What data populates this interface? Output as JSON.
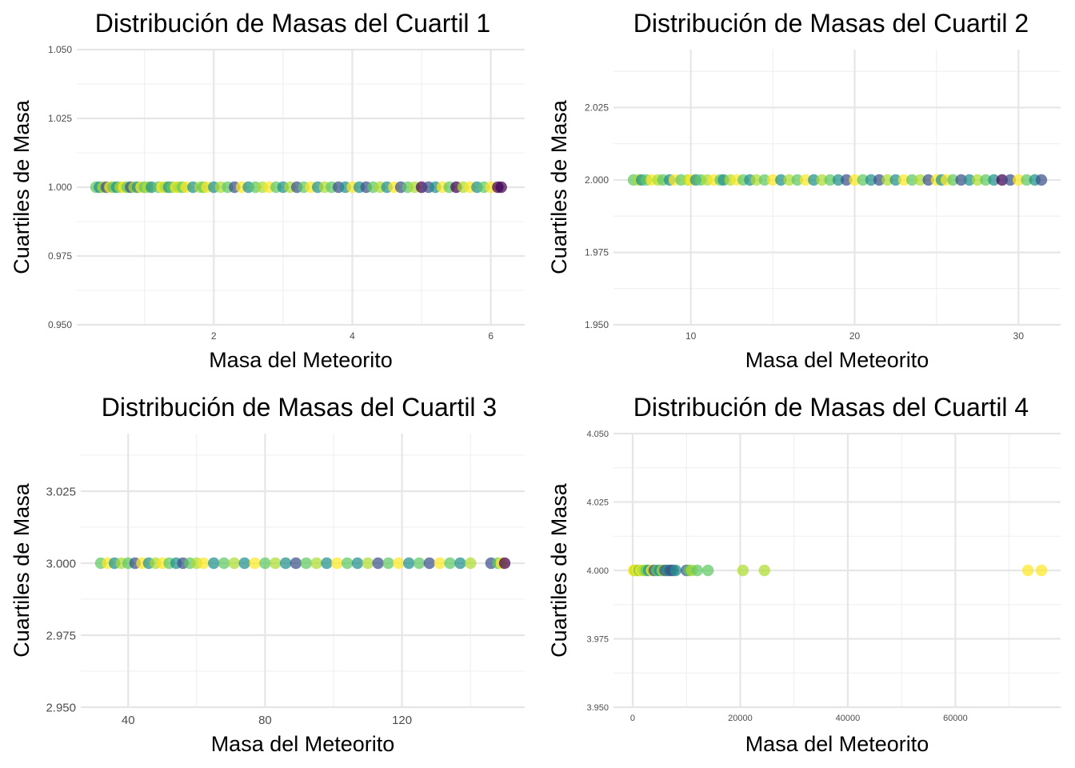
{
  "chart_data": [
    {
      "type": "scatter",
      "title": "Distribución de Masas del Cuartil 1",
      "xlabel": "Masa del Meteorito",
      "ylabel": "Cuartiles de Masa",
      "xlim": [
        0.3,
        6.2
      ],
      "ylim": [
        0.95,
        1.05
      ],
      "xticks": [
        "2",
        "4",
        "6"
      ],
      "xtick_values": [
        2,
        4,
        6
      ],
      "yticks": [
        "0.950",
        "0.975",
        "1.000",
        "1.025",
        "1.050"
      ],
      "ytick_values": [
        0.95,
        0.975,
        1.0,
        1.025,
        1.05
      ],
      "grid": true,
      "y_value": 1.0,
      "x": [
        0.3,
        0.35,
        0.4,
        0.45,
        0.5,
        0.55,
        0.6,
        0.65,
        0.7,
        0.75,
        0.8,
        0.85,
        0.9,
        0.95,
        1.0,
        1.05,
        1.1,
        1.2,
        1.25,
        1.3,
        1.35,
        1.4,
        1.45,
        1.5,
        1.55,
        1.6,
        1.7,
        1.8,
        1.85,
        1.9,
        2.0,
        2.1,
        2.2,
        2.3,
        2.4,
        2.5,
        2.6,
        2.7,
        2.8,
        2.9,
        3.0,
        3.1,
        3.2,
        3.3,
        3.4,
        3.5,
        3.6,
        3.7,
        3.8,
        3.9,
        4.0,
        4.1,
        4.2,
        4.3,
        4.4,
        4.5,
        4.6,
        4.7,
        4.8,
        4.9,
        5.0,
        5.1,
        5.2,
        5.3,
        5.4,
        5.5,
        5.6,
        5.7,
        5.8,
        5.9,
        6.0,
        6.1,
        6.15
      ],
      "colors": [
        "#5ec962",
        "#21918c",
        "#addc30",
        "#3b528b",
        "#fde725",
        "#5ec962",
        "#21918c",
        "#addc30",
        "#fde725",
        "#5ec962",
        "#3b528b",
        "#addc30",
        "#21918c",
        "#fde725",
        "#5ec962",
        "#addc30",
        "#21918c",
        "#5ec962",
        "#fde725",
        "#addc30",
        "#21918c",
        "#5ec962",
        "#fde725",
        "#addc30",
        "#5ec962",
        "#fde725",
        "#21918c",
        "#addc30",
        "#5ec962",
        "#fde725",
        "#21918c",
        "#addc30",
        "#5ec962",
        "#3b528b",
        "#fde725",
        "#21918c",
        "#5ec962",
        "#addc30",
        "#fde725",
        "#5ec962",
        "#21918c",
        "#addc30",
        "#3b528b",
        "#5ec962",
        "#fde725",
        "#21918c",
        "#addc30",
        "#5ec962",
        "#3b528b",
        "#21918c",
        "#fde725",
        "#21918c",
        "#3b528b",
        "#5ec962",
        "#addc30",
        "#21918c",
        "#fde725",
        "#3b528b",
        "#5ec962",
        "#addc30",
        "#440154",
        "#3b528b",
        "#21918c",
        "#fde725",
        "#5ec962",
        "#440154",
        "#addc30",
        "#fde725",
        "#21918c",
        "#5ec962",
        "#fde725",
        "#440154",
        "#440154"
      ]
    },
    {
      "type": "scatter",
      "title": "Distribución de Masas del Cuartil 2",
      "xlabel": "Masa del Meteorito",
      "ylabel": "Cuartiles de Masa",
      "xlim": [
        6.5,
        31.4
      ],
      "ylim": [
        1.95,
        2.045
      ],
      "xticks": [
        "10",
        "20",
        "30"
      ],
      "xtick_values": [
        10,
        20,
        30
      ],
      "yticks": [
        "1.950",
        "1.975",
        "2.000",
        "2.025"
      ],
      "ytick_values": [
        1.95,
        1.975,
        2.0,
        2.025
      ],
      "grid": true,
      "y_value": 2.0,
      "x": [
        6.5,
        6.8,
        7.0,
        7.3,
        7.6,
        8.0,
        8.3,
        8.7,
        9.0,
        9.4,
        9.8,
        10.0,
        10.3,
        10.6,
        11.0,
        11.4,
        11.8,
        12.0,
        12.4,
        12.8,
        13.2,
        13.6,
        14.0,
        14.5,
        15.0,
        15.5,
        16.0,
        16.5,
        17.0,
        17.5,
        18.0,
        18.5,
        19.0,
        19.5,
        20.0,
        20.5,
        21.0,
        21.5,
        22.0,
        22.5,
        23.0,
        23.5,
        24.0,
        24.5,
        25.0,
        25.3,
        25.6,
        26.0,
        26.5,
        27.0,
        27.5,
        28.0,
        28.5,
        29.0,
        29.5,
        30.0,
        30.5,
        31.0,
        31.4
      ],
      "colors": [
        "#5ec962",
        "#addc30",
        "#21918c",
        "#5ec962",
        "#fde725",
        "#addc30",
        "#5ec962",
        "#21918c",
        "#fde725",
        "#5ec962",
        "#addc30",
        "#fde725",
        "#21918c",
        "#5ec962",
        "#addc30",
        "#fde725",
        "#5ec962",
        "#21918c",
        "#addc30",
        "#fde725",
        "#5ec962",
        "#21918c",
        "#addc30",
        "#5ec962",
        "#fde725",
        "#21918c",
        "#addc30",
        "#5ec962",
        "#fde725",
        "#21918c",
        "#addc30",
        "#5ec962",
        "#21918c",
        "#3b528b",
        "#fde725",
        "#5ec962",
        "#21918c",
        "#3b528b",
        "#addc30",
        "#21918c",
        "#fde725",
        "#5ec962",
        "#addc30",
        "#3b528b",
        "#fde725",
        "#21918c",
        "#fde725",
        "#5ec962",
        "#3b528b",
        "#21918c",
        "#addc30",
        "#5ec962",
        "#21918c",
        "#440154",
        "#3b528b",
        "#fde725",
        "#5ec962",
        "#21918c",
        "#3b528b"
      ]
    },
    {
      "type": "scatter",
      "title": "Distribución de Masas del Cuartil 3",
      "xlabel": "Masa del Meteorito",
      "ylabel": "Cuartiles de Masa",
      "xlim": [
        32,
        150
      ],
      "ylim": [
        2.95,
        3.045
      ],
      "xticks": [
        "40",
        "80",
        "120"
      ],
      "xtick_values": [
        40,
        80,
        120
      ],
      "yticks": [
        "2.950",
        "2.975",
        "3.000",
        "3.025"
      ],
      "ytick_values": [
        2.95,
        2.975,
        3.0,
        3.025
      ],
      "grid": true,
      "y_value": 3.0,
      "x": [
        32,
        34,
        36,
        38,
        40,
        42,
        44,
        46,
        48,
        50,
        52,
        54,
        56,
        58,
        60,
        62,
        65,
        68,
        71,
        74,
        77,
        80,
        83,
        86,
        89,
        92,
        95,
        98,
        101,
        104,
        107,
        110,
        113,
        116,
        119,
        122,
        125,
        128,
        131,
        134,
        137,
        140,
        146,
        148,
        149,
        150
      ],
      "colors": [
        "#5ec962",
        "#fde725",
        "#21918c",
        "#addc30",
        "#5ec962",
        "#3b528b",
        "#fde725",
        "#21918c",
        "#addc30",
        "#fde725",
        "#5ec962",
        "#21918c",
        "#3b528b",
        "#5ec962",
        "#addc30",
        "#fde725",
        "#21918c",
        "#5ec962",
        "#addc30",
        "#21918c",
        "#fde725",
        "#5ec962",
        "#addc30",
        "#21918c",
        "#3b528b",
        "#5ec962",
        "#addc30",
        "#21918c",
        "#fde725",
        "#5ec962",
        "#21918c",
        "#addc30",
        "#3b528b",
        "#5ec962",
        "#fde725",
        "#21918c",
        "#5ec962",
        "#3b528b",
        "#fde725",
        "#5ec962",
        "#21918c",
        "#addc30",
        "#3b528b",
        "#5ec962",
        "#fde725",
        "#440154"
      ]
    },
    {
      "type": "scatter",
      "title": "Distribución de Masas del Cuartil 4",
      "xlabel": "Masa del Meteorito",
      "ylabel": "Cuartiles de Masa",
      "xlim": [
        150,
        76000
      ],
      "ylim": [
        3.95,
        4.05
      ],
      "xticks": [
        "0",
        "20000",
        "40000",
        "60000"
      ],
      "xtick_values": [
        0,
        20000,
        40000,
        60000
      ],
      "yticks": [
        "3.950",
        "3.975",
        "4.000",
        "4.025",
        "4.050"
      ],
      "ytick_values": [
        3.95,
        3.975,
        4.0,
        4.025,
        4.05
      ],
      "grid": true,
      "y_value": 4.0,
      "x": [
        160,
        300,
        500,
        800,
        1200,
        1500,
        2000,
        2500,
        3000,
        3500,
        4000,
        4500,
        5000,
        5500,
        6000,
        6500,
        7000,
        7500,
        8000,
        10000,
        10500,
        11000,
        12000,
        14000,
        20500,
        24500,
        73500,
        76000
      ],
      "colors": [
        "#fde725",
        "#fde725",
        "#addc30",
        "#fde725",
        "#5ec962",
        "#fde725",
        "#addc30",
        "#5ec962",
        "#21918c",
        "#fde725",
        "#3b528b",
        "#5ec962",
        "#21918c",
        "#addc30",
        "#3b528b",
        "#21918c",
        "#3b528b",
        "#3b528b",
        "#21918c",
        "#3b528b",
        "#5ec962",
        "#addc30",
        "#5ec962",
        "#5ec962",
        "#addc30",
        "#addc30",
        "#fde725",
        "#fde725"
      ]
    }
  ]
}
